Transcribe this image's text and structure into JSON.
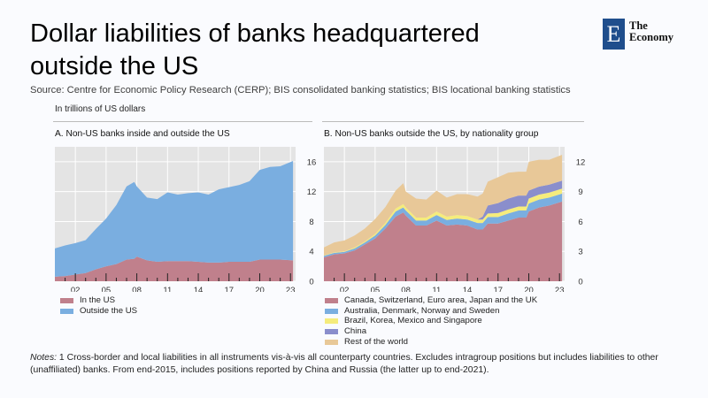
{
  "header": {
    "title": "Dollar liabilities of banks headquartered outside the US",
    "source": "Source: Centre for Economic Policy Research (CERP); BIS consolidated banking statistics; BIS locational banking statistics",
    "unit_label": "In trillions of US dollars"
  },
  "logo": {
    "letter": "E",
    "line1": "The",
    "line2": "Economy",
    "color": "#1f4e8c"
  },
  "notes": {
    "label": "Notes:",
    "text": " 1 Cross-border and local liabilities in all instruments vis-à-vis all counterparty countries. Excludes intragroup positions but includes liabilities to other (unaffiliated) banks. From end-2015, includes positions reported by China and Russia (the latter up to end-2021)."
  },
  "chart_data": [
    {
      "type": "area",
      "stacked": true,
      "title": "A. Non-US banks inside and outside the US",
      "xlabel": "",
      "ylabel": "",
      "x": [
        2000,
        2001,
        2002,
        2003,
        2004,
        2005,
        2006,
        2007,
        2007.75,
        2008,
        2009,
        2010,
        2011,
        2012,
        2013,
        2014,
        2015,
        2016,
        2017,
        2018,
        2019,
        2020,
        2021,
        2022,
        2023.25
      ],
      "xlim": [
        2000,
        2023.5
      ],
      "xticks": [
        "02",
        "05",
        "08",
        "11",
        "14",
        "17",
        "20",
        "23"
      ],
      "xtick_values": [
        2002,
        2005,
        2008,
        2011,
        2014,
        2017,
        2020,
        2023
      ],
      "ylim": [
        0,
        18
      ],
      "yticks": [
        0,
        4,
        8,
        12,
        16
      ],
      "y_axis_side": "right",
      "grid": true,
      "legend": "bottom-left",
      "series": [
        {
          "name": "In the US",
          "color": "#c0808c",
          "values": [
            0.6,
            0.7,
            0.9,
            1.1,
            1.6,
            2.0,
            2.3,
            2.9,
            3.0,
            3.3,
            2.8,
            2.6,
            2.7,
            2.7,
            2.7,
            2.6,
            2.5,
            2.5,
            2.6,
            2.6,
            2.6,
            2.9,
            2.9,
            2.9,
            2.8
          ]
        },
        {
          "name": "Outside the US",
          "color": "#7aaee0",
          "values": [
            3.8,
            4.1,
            4.2,
            4.4,
            5.4,
            6.4,
            7.9,
            9.8,
            10.3,
            9.4,
            8.4,
            8.4,
            9.2,
            8.9,
            9.1,
            9.3,
            9.1,
            9.8,
            10.0,
            10.3,
            10.8,
            12.0,
            12.4,
            12.5,
            13.3
          ]
        }
      ]
    },
    {
      "type": "area",
      "stacked": true,
      "title": "B. Non-US banks outside the US, by nationality group",
      "xlabel": "",
      "ylabel": "",
      "x": [
        2000,
        2001,
        2002,
        2003,
        2004,
        2005,
        2006,
        2007,
        2007.75,
        2008,
        2009,
        2010,
        2011,
        2012,
        2013,
        2014,
        2015,
        2015.5,
        2016,
        2017,
        2018,
        2019,
        2019.75,
        2020,
        2021,
        2022,
        2023.25
      ],
      "xlim": [
        2000,
        2023.5
      ],
      "xticks": [
        "02",
        "05",
        "08",
        "11",
        "14",
        "17",
        "20",
        "23"
      ],
      "xtick_values": [
        2002,
        2005,
        2008,
        2011,
        2014,
        2017,
        2020,
        2023
      ],
      "ylim": [
        0,
        13.5
      ],
      "yticks": [
        0,
        3,
        6,
        9,
        12
      ],
      "y_axis_side": "right",
      "grid": true,
      "legend": "bottom-right",
      "series": [
        {
          "name": "Canada, Switzerland, Euro area, Japan and the UK",
          "color": "#c0808c",
          "values": [
            2.4,
            2.7,
            2.8,
            3.1,
            3.7,
            4.3,
            5.3,
            6.5,
            6.9,
            6.6,
            5.6,
            5.6,
            6.1,
            5.6,
            5.7,
            5.6,
            5.2,
            5.2,
            5.8,
            5.8,
            6.1,
            6.4,
            6.4,
            7.0,
            7.4,
            7.6,
            8.0
          ]
        },
        {
          "name": "Australia, Denmark, Norway and Sweden",
          "color": "#7aaee0",
          "values": [
            0.15,
            0.15,
            0.15,
            0.2,
            0.2,
            0.3,
            0.35,
            0.5,
            0.5,
            0.5,
            0.5,
            0.5,
            0.55,
            0.55,
            0.6,
            0.6,
            0.65,
            0.65,
            0.65,
            0.65,
            0.7,
            0.7,
            0.7,
            0.8,
            0.8,
            0.8,
            0.8
          ]
        },
        {
          "name": "Brazil, Korea, Mexico and Singapore",
          "color": "#f5ec7c",
          "values": [
            0.05,
            0.05,
            0.05,
            0.1,
            0.1,
            0.15,
            0.2,
            0.3,
            0.35,
            0.3,
            0.3,
            0.3,
            0.35,
            0.35,
            0.35,
            0.35,
            0.35,
            0.35,
            0.35,
            0.4,
            0.4,
            0.4,
            0.4,
            0.5,
            0.5,
            0.5,
            0.5
          ]
        },
        {
          "name": "China",
          "color": "#8a8ecc",
          "values": [
            0,
            0,
            0,
            0,
            0,
            0,
            0,
            0,
            0,
            0,
            0,
            0,
            0,
            0,
            0,
            0,
            0,
            0.3,
            0.8,
            1.0,
            1.1,
            1.1,
            1.1,
            0.8,
            0.8,
            0.8,
            0.8
          ]
        },
        {
          "name": "Rest of the world",
          "color": "#e8c898",
          "values": [
            0.8,
            1.0,
            1.1,
            1.2,
            1.3,
            1.5,
            1.6,
            1.8,
            2.1,
            1.6,
            1.9,
            1.8,
            2.1,
            1.9,
            2.1,
            2.2,
            2.3,
            2.3,
            2.4,
            2.6,
            2.6,
            2.4,
            2.4,
            2.9,
            2.7,
            2.5,
            2.6
          ]
        }
      ]
    }
  ]
}
